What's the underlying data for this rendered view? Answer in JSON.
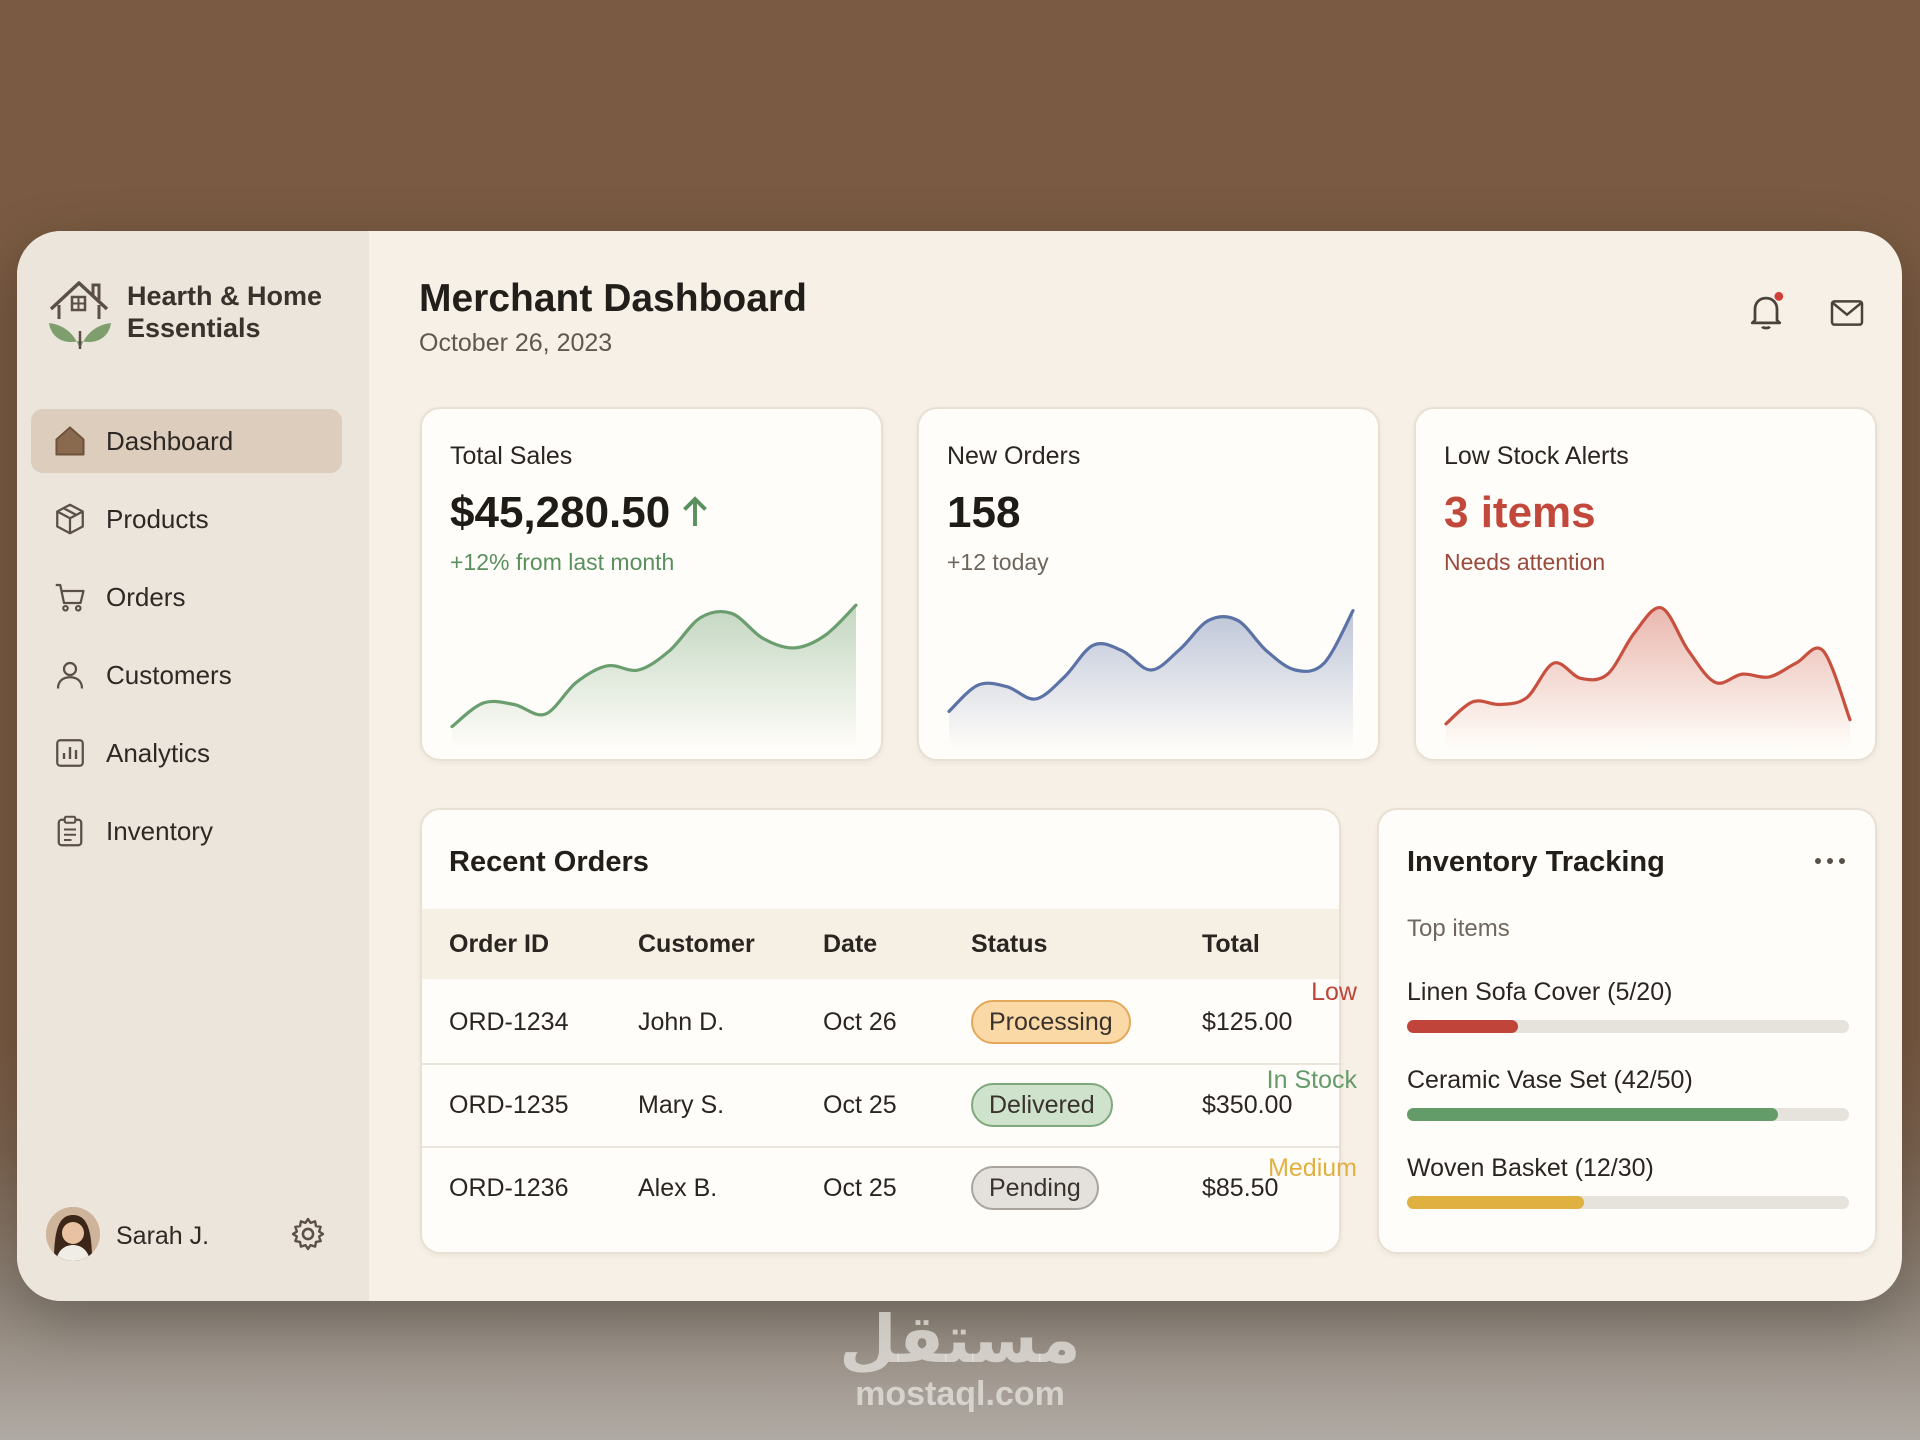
{
  "brand": {
    "line1": "Hearth & Home",
    "line2": "Essentials"
  },
  "nav": [
    "Dashboard",
    "Products",
    "Orders",
    "Customers",
    "Analytics",
    "Inventory"
  ],
  "active_nav": 0,
  "user": {
    "name": "Sarah J."
  },
  "header": {
    "title": "Merchant Dashboard",
    "date": "October 26, 2023"
  },
  "stats": [
    {
      "label": "Total Sales",
      "value": "$45,280.50",
      "note": "+12% from last month",
      "value_color": "#1f1b17",
      "note_color": "#5a8f5e",
      "arrow": true,
      "color": "#6a9e6e",
      "trend": [
        9,
        26,
        25,
        18,
        41,
        53,
        50,
        64,
        88,
        91,
        73,
        66,
        75,
        97
      ],
      "ylim": [
        0,
        100
      ]
    },
    {
      "label": "New Orders",
      "value": "158",
      "note": "+12 today",
      "value_color": "#1f1b17",
      "note_color": "#6d665e",
      "arrow": false,
      "color": "#5b72a6",
      "trend": [
        20,
        39,
        38,
        29,
        45,
        68,
        64,
        50,
        65,
        86,
        86,
        64,
        50,
        55,
        93
      ],
      "ylim": [
        0,
        100
      ]
    },
    {
      "label": "Low Stock Alerts",
      "value": "3 items",
      "note": "Needs attention",
      "value_color": "#c2483b",
      "note_color": "#9a4a3c",
      "arrow": false,
      "color": "#c8503f",
      "trend": [
        11,
        27,
        25,
        30,
        55,
        44,
        47,
        77,
        95,
        64,
        41,
        47,
        45,
        55,
        64,
        14
      ],
      "ylim": [
        0,
        100
      ]
    }
  ],
  "recent_orders": {
    "title": "Recent Orders",
    "columns": [
      "Order ID",
      "Customer",
      "Date",
      "Status",
      "Total"
    ],
    "rows": [
      {
        "id": "ORD-1234",
        "customer": "John D.",
        "date": "Oct 26",
        "status": "Processing",
        "status_bg": "#fbd9a6",
        "status_border": "#e3a85a",
        "total": "$125.00"
      },
      {
        "id": "ORD-1235",
        "customer": "Mary S.",
        "date": "Oct 25",
        "status": "Delivered",
        "status_bg": "#cfe3cc",
        "status_border": "#7fa97d",
        "total": "$350.00"
      },
      {
        "id": "ORD-1236",
        "customer": "Alex B.",
        "date": "Oct 25",
        "status": "Pending",
        "status_bg": "#e4e1dc",
        "status_border": "#a9a49d",
        "total": "$85.50"
      }
    ]
  },
  "inventory": {
    "title": "Inventory Tracking",
    "subtitle": "Top items",
    "items": [
      {
        "label": "Linen Sofa Cover (5/20)",
        "status": "Low",
        "color": "#c0443a"
      },
      {
        "label": "Ceramic Vase Set (42/50)",
        "status": "In Stock",
        "color": "#639c69"
      },
      {
        "label": "Woven Basket (12/30)",
        "status": "Medium",
        "color": "#e0b040"
      }
    ]
  },
  "watermark": {
    "arabic": "مستقل",
    "latin": "mostaql.com"
  }
}
